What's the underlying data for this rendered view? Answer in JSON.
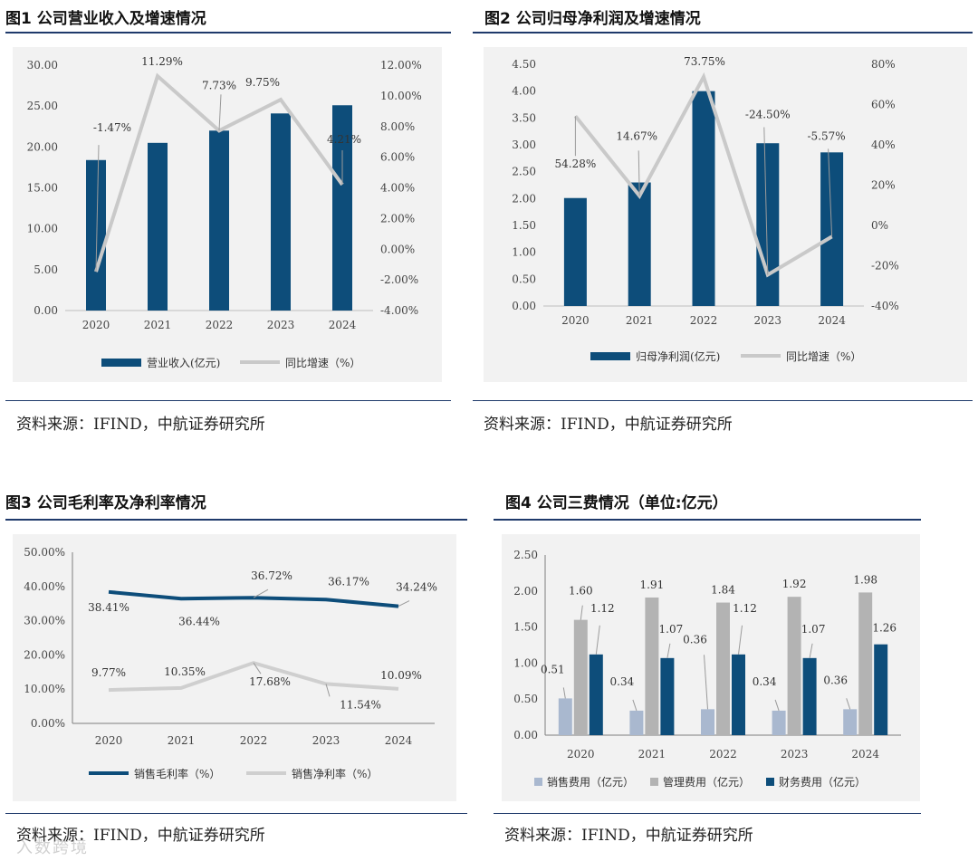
{
  "chart_data": [
    {
      "type": "bar",
      "figure_label": "图1",
      "title": "公司营业收入及增速情况",
      "categories": [
        "2020",
        "2021",
        "2022",
        "2023",
        "2024"
      ],
      "ylim": [
        0,
        30
      ],
      "y_ticks": [
        "30.00",
        "25.00",
        "20.00",
        "15.00",
        "10.00",
        "5.00",
        "0.00"
      ],
      "y2lim": [
        -4,
        12
      ],
      "y2_ticks": [
        "12.00%",
        "10.00%",
        "8.00%",
        "6.00%",
        "4.00%",
        "2.00%",
        "0.00%",
        "-2.00%",
        "-4.00%"
      ],
      "series": [
        {
          "name": "营业收入(亿元)",
          "kind": "bar",
          "axis": "left",
          "values": [
            18.4,
            20.5,
            22.0,
            24.1,
            25.1
          ]
        },
        {
          "name": "同比增速（%）",
          "kind": "line",
          "axis": "right",
          "values": [
            -1.47,
            11.29,
            7.73,
            9.75,
            4.21
          ],
          "labels": [
            "-1.47%",
            "11.29%",
            "7.73%",
            "9.75%",
            "4.21%"
          ]
        }
      ],
      "colors": {
        "bar": "#0d4d7a",
        "line": "#c9c9c9"
      },
      "source": "资料来源：IFIND，中航证券研究所"
    },
    {
      "type": "bar",
      "figure_label": "图2",
      "title": "公司归母净利润及增速情况",
      "categories": [
        "2020",
        "2021",
        "2022",
        "2023",
        "2024"
      ],
      "ylim": [
        0,
        4.5
      ],
      "y_ticks": [
        "4.50",
        "4.00",
        "3.50",
        "3.00",
        "2.50",
        "2.00",
        "1.50",
        "1.00",
        "0.50",
        "0.00"
      ],
      "y2lim": [
        -40,
        80
      ],
      "y2_ticks": [
        "80%",
        "60%",
        "40%",
        "20%",
        "0%",
        "-20%",
        "-40%"
      ],
      "series": [
        {
          "name": "归母净利润(亿元)",
          "kind": "bar",
          "axis": "left",
          "values": [
            2.01,
            2.3,
            4.0,
            3.03,
            2.86
          ]
        },
        {
          "name": "同比增速（%）",
          "kind": "line",
          "axis": "right",
          "values": [
            54.28,
            14.67,
            73.75,
            -24.5,
            -5.57
          ],
          "labels": [
            "54.28%",
            "14.67%",
            "73.75%",
            "-24.50%",
            "-5.57%"
          ]
        }
      ],
      "colors": {
        "bar": "#0d4d7a",
        "line": "#c9c9c9"
      },
      "source": "资料来源：IFIND，中航证券研究所"
    },
    {
      "type": "line",
      "figure_label": "图3",
      "title": "公司毛利率及净利率情况",
      "categories": [
        "2020",
        "2021",
        "2022",
        "2023",
        "2024"
      ],
      "ylim": [
        0,
        50
      ],
      "y_ticks": [
        "50.00%",
        "40.00%",
        "30.00%",
        "20.00%",
        "10.00%",
        "0.00%"
      ],
      "series": [
        {
          "name": "销售毛利率（%）",
          "values": [
            38.41,
            36.44,
            36.72,
            36.17,
            34.24
          ],
          "labels": [
            "38.41%",
            "36.44%",
            "36.72%",
            "36.17%",
            "34.24%"
          ]
        },
        {
          "name": "销售净利率（%）",
          "values": [
            9.77,
            10.35,
            17.68,
            11.54,
            10.09
          ],
          "labels": [
            "9.77%",
            "10.35%",
            "17.68%",
            "11.54%",
            "10.09%"
          ]
        }
      ],
      "colors": {
        "gross": "#0d4d7a",
        "net": "#cfcfcf"
      },
      "source": "资料来源：IFIND，中航证券研究所"
    },
    {
      "type": "bar",
      "figure_label": "图4",
      "title": "公司三费情况（单位:亿元）",
      "categories": [
        "2020",
        "2021",
        "2022",
        "2023",
        "2024"
      ],
      "ylim": [
        0,
        2.5
      ],
      "y_ticks": [
        "2.50",
        "2.00",
        "1.50",
        "1.00",
        "0.50",
        "0.00"
      ],
      "series": [
        {
          "name": "销售费用（亿元）",
          "values": [
            0.51,
            0.34,
            0.36,
            0.34,
            0.36
          ],
          "labels": [
            "0.51",
            "0.34",
            "0.36",
            "0.34",
            "0.36"
          ]
        },
        {
          "name": "管理费用（亿元）",
          "values": [
            1.6,
            1.91,
            1.84,
            1.92,
            1.98
          ],
          "labels": [
            "1.60",
            "1.91",
            "1.84",
            "1.92",
            "1.98"
          ]
        },
        {
          "name": "财务费用（亿元）",
          "values": [
            1.12,
            1.07,
            1.12,
            1.07,
            1.26
          ],
          "labels": [
            "1.12",
            "1.07",
            "1.12",
            "1.07",
            "1.26"
          ]
        }
      ],
      "colors": {
        "sales": "#a9b8cf",
        "admin": "#b3b3b3",
        "finance": "#0d4d7a"
      },
      "source": "资料来源：IFIND，中航证券研究所"
    }
  ],
  "watermark": "入数跨境"
}
